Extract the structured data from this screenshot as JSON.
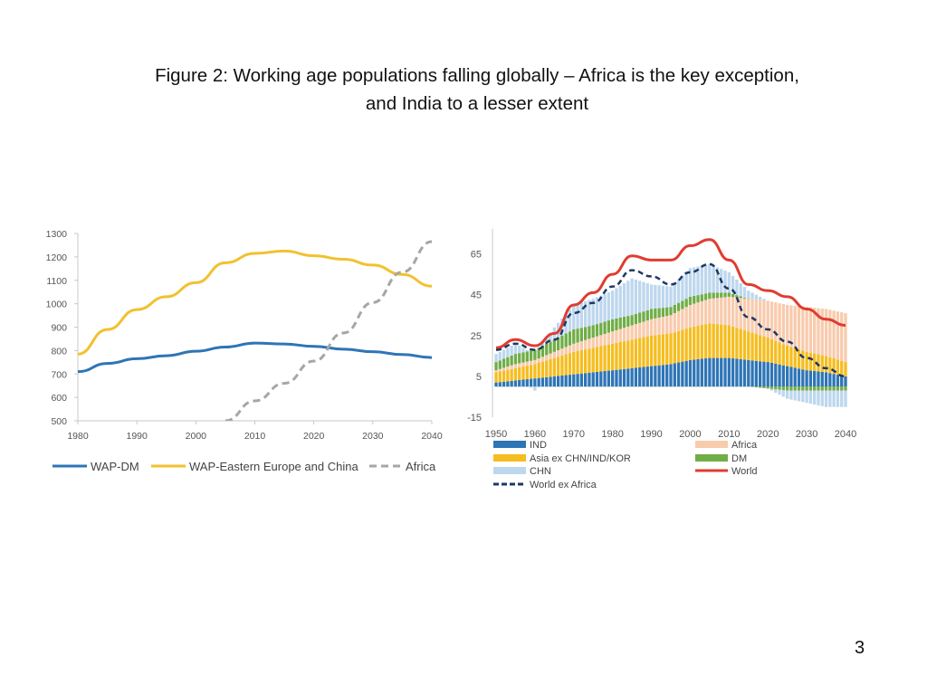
{
  "slide": {
    "title_line1": "Figure 2:  Working age populations falling globally – Africa is the key exception,",
    "title_line2": "and India to a lesser extent",
    "page_number": "3"
  },
  "chart_data": [
    {
      "type": "line",
      "x": [
        1980,
        1985,
        1990,
        1995,
        2000,
        2005,
        2010,
        2015,
        2020,
        2025,
        2030,
        2035,
        2040
      ],
      "ylim": [
        500,
        1300
      ],
      "xlim": [
        1980,
        2040
      ],
      "y_ticks": [
        1300,
        1200,
        1100,
        1000,
        900,
        800,
        700,
        600,
        500
      ],
      "x_ticks": [
        1980,
        1990,
        2000,
        2010,
        2020,
        2030,
        2040
      ],
      "legend_position": "bottom",
      "series": [
        {
          "name": "WAP-DM",
          "color": "#2e75b6",
          "style": "solid",
          "values": [
            710,
            745,
            765,
            778,
            797,
            815,
            832,
            828,
            818,
            806,
            795,
            783,
            770
          ]
        },
        {
          "name": "WAP-Eastern Europe and China",
          "color": "#f2c12e",
          "style": "solid",
          "values": [
            785,
            890,
            975,
            1030,
            1090,
            1175,
            1215,
            1225,
            1205,
            1190,
            1165,
            1125,
            1075
          ]
        },
        {
          "name": "Africa",
          "color": "#a6a6a6",
          "style": "dashed",
          "values": [
            null,
            null,
            null,
            null,
            null,
            500,
            585,
            660,
            755,
            875,
            1005,
            1135,
            1265
          ]
        }
      ]
    },
    {
      "type": "area",
      "x": [
        1950,
        1955,
        1960,
        1965,
        1970,
        1975,
        1980,
        1985,
        1990,
        1995,
        2000,
        2005,
        2010,
        2015,
        2020,
        2025,
        2030,
        2035,
        2040
      ],
      "ylim": [
        -15,
        75
      ],
      "xlim": [
        1950,
        2040
      ],
      "y_ticks": [
        65,
        45,
        25,
        5,
        -15
      ],
      "x_ticks": [
        1950,
        1960,
        1970,
        1980,
        1990,
        2000,
        2010,
        2020,
        2030,
        2040
      ],
      "legend_position": "bottom",
      "stacked_series": [
        {
          "name": "IND",
          "color": "#2e75b6",
          "values": [
            2,
            3,
            4,
            5,
            6,
            7,
            8,
            9,
            10,
            11,
            13,
            14,
            14,
            13,
            12,
            10,
            8,
            7,
            5
          ]
        },
        {
          "name": "Asia ex CHN/IND/KOR",
          "color": "#f5bd1f",
          "values": [
            5,
            6,
            7,
            9,
            11,
            12,
            13,
            14,
            15,
            15,
            16,
            17,
            16,
            14,
            12,
            10,
            9,
            8,
            7
          ]
        },
        {
          "name": "Africa",
          "color": "#f8cbad",
          "values": [
            1,
            2,
            2,
            3,
            4,
            5,
            6,
            7,
            8,
            9,
            11,
            12,
            14,
            16,
            18,
            20,
            22,
            23,
            24
          ]
        },
        {
          "name": "DM",
          "color": "#70ad47",
          "values": [
            4,
            5,
            5,
            6,
            7,
            6,
            6,
            5,
            5,
            4,
            4,
            3,
            2,
            0,
            -1,
            -2,
            -2,
            -2,
            -2
          ]
        },
        {
          "name": "CHN",
          "color": "#bdd7ee",
          "values": [
            4,
            5,
            -2,
            6,
            12,
            13,
            14,
            18,
            12,
            10,
            14,
            14,
            10,
            4,
            0,
            -4,
            -6,
            -8,
            -8
          ]
        }
      ],
      "series": [
        {
          "name": "World",
          "color": "#e03c31",
          "style": "solid",
          "values": [
            19,
            23,
            20,
            26,
            40,
            46,
            55,
            64,
            62,
            62,
            69,
            72,
            62,
            50,
            47,
            44,
            38,
            33,
            30
          ]
        },
        {
          "name": "World ex Africa",
          "color": "#1f3864",
          "style": "dashed",
          "values": [
            18,
            21,
            18,
            23,
            36,
            41,
            49,
            57,
            54,
            50,
            56,
            60,
            48,
            34,
            28,
            22,
            14,
            9,
            5
          ]
        }
      ]
    }
  ]
}
